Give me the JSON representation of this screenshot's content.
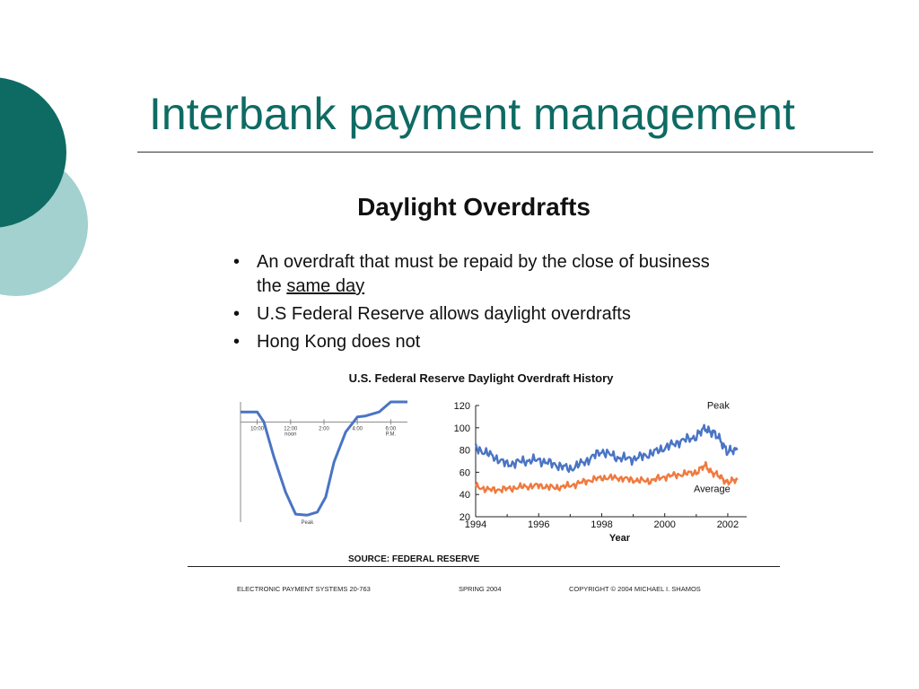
{
  "slide": {
    "title": "Interbank payment management",
    "accent_color": "#0e6b63",
    "accent_light_color": "#a3d1cf"
  },
  "figure": {
    "heading": "Daylight Overdrafts",
    "bullets": [
      {
        "text": "An overdraft that must be repaid by the close of business the ",
        "underlined": "same day"
      },
      {
        "text": "U.S Federal Reserve allows daylight overdrafts",
        "underlined": ""
      },
      {
        "text": "Hong Kong does not",
        "underlined": ""
      }
    ],
    "bullet_glyph": "•",
    "source": "SOURCE: FEDERAL RESERVE",
    "footer": {
      "left": "ELECTRONIC PAYMENT SYSTEMS 20-763",
      "middle": "SPRING 2004",
      "right": "COPYRIGHT © 2004 MICHAEL I. SHAMOS"
    }
  },
  "chart_data": [
    {
      "type": "line",
      "title": "U.S. Federal Reserve Daylight Overdraft History",
      "x_ticks": [
        {
          "label": "10:00",
          "sub": ""
        },
        {
          "label": "12:00",
          "sub": "noon"
        },
        {
          "label": "2:00",
          "sub": ""
        },
        {
          "label": "4:00",
          "sub": ""
        },
        {
          "label": "6:00",
          "sub": "P.M."
        }
      ],
      "x_range": [
        9,
        19
      ],
      "y_range": [
        -10,
        2
      ],
      "annotations": [
        "Peak"
      ],
      "series": [
        {
          "color": "#4a74c4",
          "points": [
            [
              9,
              1
            ],
            [
              10,
              1
            ],
            [
              10.4,
              0
            ],
            [
              11,
              -3.5
            ],
            [
              11.7,
              -7
            ],
            [
              12.3,
              -9.2
            ],
            [
              13,
              -9.3
            ],
            [
              13.6,
              -9
            ],
            [
              14.1,
              -7.5
            ],
            [
              14.6,
              -4
            ],
            [
              15.3,
              -1
            ],
            [
              16,
              0.5
            ],
            [
              16.5,
              0.6
            ],
            [
              17.3,
              1
            ],
            [
              18,
              2
            ],
            [
              19,
              2
            ]
          ]
        }
      ]
    },
    {
      "type": "line",
      "xlabel": "Year",
      "ylabel": "",
      "x_ticks": [
        1994,
        1996,
        1998,
        2000,
        2002
      ],
      "y_ticks": [
        20,
        40,
        60,
        80,
        100,
        120
      ],
      "xlim": [
        1994,
        2002.6
      ],
      "ylim": [
        20,
        120
      ],
      "series": [
        {
          "name": "Peak",
          "color": "#4a74c4",
          "points": [
            [
              1994,
              82
            ],
            [
              1994.5,
              75
            ],
            [
              1995,
              67
            ],
            [
              1995.5,
              70
            ],
            [
              1996,
              71
            ],
            [
              1996.5,
              67
            ],
            [
              1997,
              63
            ],
            [
              1997.5,
              70
            ],
            [
              1998,
              79
            ],
            [
              1998.5,
              73
            ],
            [
              1999,
              72
            ],
            [
              1999.5,
              76
            ],
            [
              2000,
              82
            ],
            [
              2000.5,
              88
            ],
            [
              2001,
              92
            ],
            [
              2001.3,
              100
            ],
            [
              2001.5,
              96
            ],
            [
              2001.8,
              88
            ],
            [
              2002,
              78
            ],
            [
              2002.3,
              80
            ]
          ]
        },
        {
          "name": "Average",
          "color": "#ef7a3f",
          "points": [
            [
              1994,
              47
            ],
            [
              1994.5,
              44
            ],
            [
              1995,
              45
            ],
            [
              1995.5,
              47
            ],
            [
              1996,
              48
            ],
            [
              1996.5,
              46
            ],
            [
              1997,
              48
            ],
            [
              1997.5,
              52
            ],
            [
              1998,
              55
            ],
            [
              1998.5,
              55
            ],
            [
              1999,
              53
            ],
            [
              1999.5,
              52
            ],
            [
              2000,
              56
            ],
            [
              2000.5,
              58
            ],
            [
              2001,
              60
            ],
            [
              2001.3,
              66
            ],
            [
              2001.5,
              60
            ],
            [
              2001.8,
              55
            ],
            [
              2002,
              51
            ],
            [
              2002.3,
              53
            ]
          ]
        }
      ]
    }
  ]
}
